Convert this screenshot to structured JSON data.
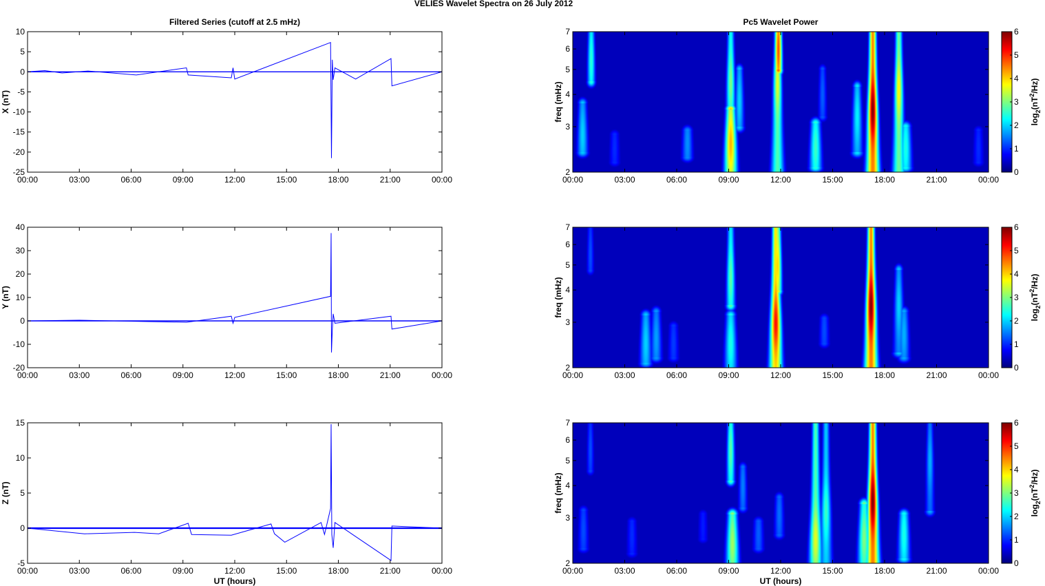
{
  "figure": {
    "title": "VELIES Wavelet Spectra on 26 July      2012"
  },
  "colors": {
    "series_line": "#0000ff",
    "axis": "#000000",
    "spectrum_background": "#00008f"
  },
  "chart_data": [
    {
      "type": "line",
      "title": "Filtered Series (cutoff at 2.5 mHz)",
      "ylabel": "X (nT)",
      "xlabel": "",
      "xlim": [
        0,
        24
      ],
      "ylim": [
        -25,
        10
      ],
      "yticks": [
        10,
        5,
        0,
        -5,
        -10,
        -15,
        -20,
        -25
      ],
      "xticks": [
        "00:00",
        "03:00",
        "06:00",
        "09:00",
        "12:00",
        "15:00",
        "18:00",
        "21:00",
        "00:00"
      ],
      "grid": false,
      "series": [
        {
          "x": [
            0,
            1.0,
            2.0,
            3.5,
            6.3,
            9.2,
            9.3,
            11.8,
            11.9,
            12.0,
            17.55,
            17.6,
            17.65,
            17.7,
            17.8,
            19.0,
            21.05,
            21.1,
            24
          ],
          "y": [
            0,
            0.3,
            -0.3,
            0.2,
            -0.8,
            1.0,
            -0.8,
            -1.5,
            1.0,
            -1.8,
            7.3,
            -21.5,
            3.0,
            -2.0,
            1.0,
            -1.8,
            3.3,
            -3.5,
            0
          ]
        }
      ]
    },
    {
      "type": "heatmap",
      "title": "Pc5 Wavelet Power",
      "ylabel": "freq (mHz)",
      "xlabel": "",
      "xlim": [
        0,
        24
      ],
      "ylim": [
        2,
        7
      ],
      "yscale": "log",
      "yticks": [
        7,
        6,
        5,
        4,
        3,
        2
      ],
      "xticks": [
        "00:00",
        "03:00",
        "06:00",
        "09:00",
        "12:00",
        "15:00",
        "18:00",
        "21:00",
        "00:00"
      ],
      "colorbar": {
        "label_base": "log",
        "label_sub": "2",
        "label_mid": "(nT",
        "label_sup": "2",
        "label_end": "/Hz)",
        "min": 0,
        "max": 6,
        "ticks": [
          6,
          5,
          4,
          3,
          2,
          1,
          0
        ]
      },
      "blobs": [
        {
          "t": 0.55,
          "f": 2.8,
          "fmin": 2.4,
          "fmax": 3.7,
          "p": 2.0
        },
        {
          "t": 1.05,
          "f": 5.5,
          "fmin": 4.5,
          "fmax": 7.0,
          "p": 2.5
        },
        {
          "t": 2.4,
          "f": 2.5,
          "fmin": 2.2,
          "fmax": 2.8,
          "p": 1.0
        },
        {
          "t": 6.6,
          "f": 2.6,
          "fmin": 2.3,
          "fmax": 2.9,
          "p": 1.6
        },
        {
          "t": 9.1,
          "f": 2.6,
          "fmin": 2.0,
          "fmax": 3.5,
          "p": 4.2
        },
        {
          "t": 9.1,
          "f": 4.5,
          "fmin": 3.5,
          "fmax": 7.0,
          "p": 3.0
        },
        {
          "t": 9.6,
          "f": 3.8,
          "fmin": 3.0,
          "fmax": 5.0,
          "p": 2.0
        },
        {
          "t": 11.8,
          "f": 4.5,
          "fmin": 2.0,
          "fmax": 7.0,
          "p": 3.6
        },
        {
          "t": 11.85,
          "f": 6.0,
          "fmin": 5.0,
          "fmax": 7.0,
          "p": 4.8
        },
        {
          "t": 14.0,
          "f": 2.5,
          "fmin": 2.1,
          "fmax": 3.1,
          "p": 2.6
        },
        {
          "t": 14.4,
          "f": 4.0,
          "fmin": 3.3,
          "fmax": 5.0,
          "p": 1.3
        },
        {
          "t": 16.4,
          "f": 3.3,
          "fmin": 2.4,
          "fmax": 4.3,
          "p": 2.2
        },
        {
          "t": 17.3,
          "f": 3.5,
          "fmin": 2.0,
          "fmax": 7.0,
          "p": 6.0
        },
        {
          "t": 18.8,
          "f": 4.2,
          "fmin": 2.0,
          "fmax": 7.0,
          "p": 3.8
        },
        {
          "t": 19.2,
          "f": 2.5,
          "fmin": 2.1,
          "fmax": 3.0,
          "p": 2.4
        },
        {
          "t": 23.4,
          "f": 2.5,
          "fmin": 2.2,
          "fmax": 2.9,
          "p": 1.0
        }
      ]
    },
    {
      "type": "line",
      "title": "",
      "ylabel": "Y (nT)",
      "xlabel": "",
      "xlim": [
        0,
        24
      ],
      "ylim": [
        -20,
        40
      ],
      "yticks": [
        40,
        30,
        20,
        10,
        0,
        -10,
        -20
      ],
      "xticks": [
        "00:00",
        "03:00",
        "06:00",
        "09:00",
        "12:00",
        "15:00",
        "18:00",
        "21:00",
        "00:00"
      ],
      "grid": false,
      "series": [
        {
          "x": [
            0,
            3.0,
            9.2,
            11.8,
            11.9,
            12.0,
            17.55,
            17.58,
            17.6,
            17.65,
            17.7,
            17.8,
            21.05,
            21.1,
            24
          ],
          "y": [
            0,
            0.3,
            -0.6,
            2.0,
            -1.0,
            1.5,
            10.5,
            37.5,
            -13.5,
            -4.0,
            3.0,
            -1.0,
            2.0,
            -3.5,
            0
          ]
        }
      ]
    },
    {
      "type": "heatmap",
      "title": "",
      "ylabel": "freq (mHz)",
      "xlabel": "",
      "xlim": [
        0,
        24
      ],
      "ylim": [
        2,
        7
      ],
      "yscale": "log",
      "yticks": [
        7,
        6,
        5,
        4,
        3,
        2
      ],
      "xticks": [
        "00:00",
        "03:00",
        "06:00",
        "09:00",
        "12:00",
        "15:00",
        "18:00",
        "21:00",
        "00:00"
      ],
      "colorbar": {
        "label_base": "log",
        "label_sub": "2",
        "label_mid": "(nT",
        "label_sup": "2",
        "label_end": "/Hz)",
        "min": 0,
        "max": 6,
        "ticks": [
          6,
          5,
          4,
          3,
          2,
          1,
          0
        ]
      },
      "blobs": [
        {
          "t": 1.0,
          "f": 5.5,
          "fmin": 4.8,
          "fmax": 7.0,
          "p": 1.2
        },
        {
          "t": 4.2,
          "f": 2.5,
          "fmin": 2.1,
          "fmax": 3.2,
          "p": 2.0
        },
        {
          "t": 4.8,
          "f": 2.6,
          "fmin": 2.2,
          "fmax": 3.3,
          "p": 1.7
        },
        {
          "t": 5.8,
          "f": 2.5,
          "fmin": 2.2,
          "fmax": 2.9,
          "p": 1.1
        },
        {
          "t": 9.1,
          "f": 2.5,
          "fmin": 2.0,
          "fmax": 3.2,
          "p": 2.4
        },
        {
          "t": 9.1,
          "f": 4.5,
          "fmin": 3.5,
          "fmax": 7.0,
          "p": 2.8
        },
        {
          "t": 11.7,
          "f": 3.0,
          "fmin": 2.0,
          "fmax": 7.0,
          "p": 5.2
        },
        {
          "t": 11.8,
          "f": 5.0,
          "fmin": 4.0,
          "fmax": 7.0,
          "p": 4.0
        },
        {
          "t": 14.5,
          "f": 2.8,
          "fmin": 2.5,
          "fmax": 3.1,
          "p": 1.2
        },
        {
          "t": 17.2,
          "f": 3.5,
          "fmin": 2.0,
          "fmax": 7.0,
          "p": 6.0
        },
        {
          "t": 18.8,
          "f": 3.5,
          "fmin": 2.3,
          "fmax": 4.8,
          "p": 2.0
        },
        {
          "t": 19.1,
          "f": 2.7,
          "fmin": 2.2,
          "fmax": 3.3,
          "p": 1.8
        }
      ]
    },
    {
      "type": "line",
      "title": "",
      "ylabel": "Z (nT)",
      "xlabel": "UT (hours)",
      "xlim": [
        0,
        24
      ],
      "ylim": [
        -5,
        15
      ],
      "yticks": [
        15,
        10,
        5,
        0,
        -5
      ],
      "xticks": [
        "00:00",
        "03:00",
        "06:00",
        "09:00",
        "12:00",
        "15:00",
        "18:00",
        "21:00",
        "00:00"
      ],
      "grid": false,
      "series": [
        {
          "x": [
            0,
            3.3,
            6.2,
            7.6,
            9.3,
            9.5,
            11.8,
            14.1,
            14.3,
            14.9,
            17.0,
            17.2,
            17.55,
            17.58,
            17.62,
            17.7,
            17.8,
            21.05,
            21.1,
            24
          ],
          "y": [
            0,
            -0.8,
            -0.6,
            -0.8,
            0.7,
            -0.9,
            -1.0,
            0.6,
            -0.8,
            -2.0,
            0.8,
            -0.9,
            2.8,
            14.8,
            -0.9,
            -2.8,
            0.8,
            -4.6,
            0.3,
            0
          ]
        }
      ]
    },
    {
      "type": "heatmap",
      "title": "",
      "ylabel": "freq (mHz)",
      "xlabel": "UT (hours)",
      "xlim": [
        0,
        24
      ],
      "ylim": [
        2,
        7
      ],
      "yscale": "log",
      "yticks": [
        7,
        6,
        5,
        4,
        3,
        2
      ],
      "xticks": [
        "00:00",
        "03:00",
        "06:00",
        "09:00",
        "12:00",
        "15:00",
        "18:00",
        "21:00",
        "00:00"
      ],
      "colorbar": {
        "label_base": "log",
        "label_sub": "2",
        "label_mid": "(nT",
        "label_sup": "2",
        "label_end": "/Hz)",
        "min": 0,
        "max": 6,
        "ticks": [
          6,
          5,
          4,
          3,
          2,
          1,
          0
        ]
      },
      "blobs": [
        {
          "t": 0.6,
          "f": 2.7,
          "fmin": 2.3,
          "fmax": 3.2,
          "p": 1.2
        },
        {
          "t": 1.0,
          "f": 5.5,
          "fmin": 4.6,
          "fmax": 7.0,
          "p": 1.2
        },
        {
          "t": 3.4,
          "f": 2.6,
          "fmin": 2.2,
          "fmax": 2.9,
          "p": 1.0
        },
        {
          "t": 7.5,
          "f": 2.8,
          "fmin": 2.5,
          "fmax": 3.1,
          "p": 0.9
        },
        {
          "t": 9.2,
          "f": 2.4,
          "fmin": 2.0,
          "fmax": 3.1,
          "p": 3.2
        },
        {
          "t": 9.1,
          "f": 5.5,
          "fmin": 4.2,
          "fmax": 7.0,
          "p": 2.8
        },
        {
          "t": 9.8,
          "f": 4.0,
          "fmin": 3.3,
          "fmax": 4.7,
          "p": 1.5
        },
        {
          "t": 10.7,
          "f": 2.6,
          "fmin": 2.3,
          "fmax": 2.9,
          "p": 1.3
        },
        {
          "t": 11.9,
          "f": 3.1,
          "fmin": 2.6,
          "fmax": 3.6,
          "p": 1.4
        },
        {
          "t": 14.0,
          "f": 2.5,
          "fmin": 2.0,
          "fmax": 7.0,
          "p": 3.6
        },
        {
          "t": 14.6,
          "f": 3.2,
          "fmin": 2.0,
          "fmax": 7.0,
          "p": 2.6
        },
        {
          "t": 16.8,
          "f": 2.5,
          "fmin": 2.0,
          "fmax": 3.4,
          "p": 3.0
        },
        {
          "t": 17.3,
          "f": 3.5,
          "fmin": 2.0,
          "fmax": 7.0,
          "p": 6.0
        },
        {
          "t": 19.1,
          "f": 2.6,
          "fmin": 2.1,
          "fmax": 3.1,
          "p": 2.4
        },
        {
          "t": 20.6,
          "f": 5.0,
          "fmin": 3.2,
          "fmax": 7.0,
          "p": 1.8
        }
      ]
    }
  ]
}
